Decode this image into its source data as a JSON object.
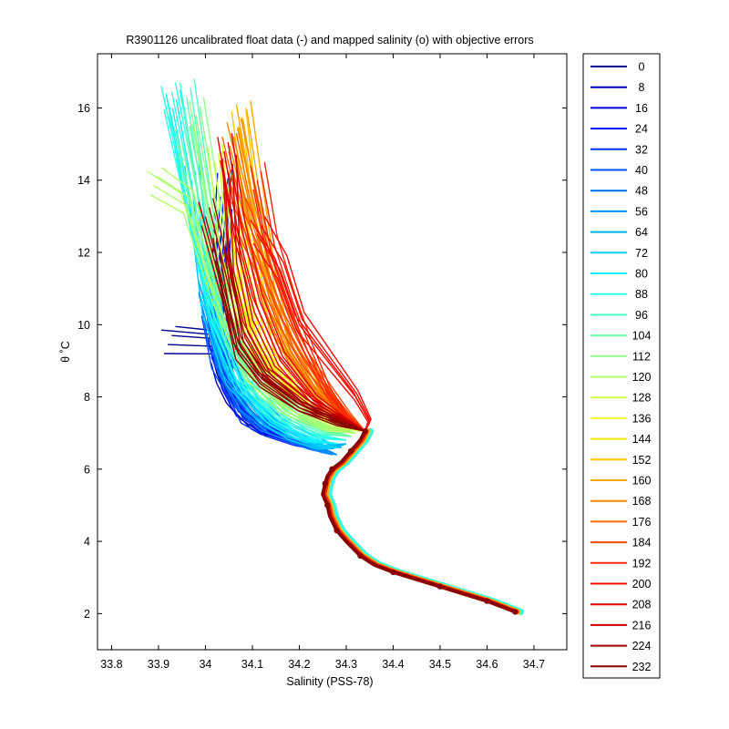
{
  "chart_data": {
    "type": "line",
    "title": "R3901126 uncalibrated float data (-) and mapped salinity (o) with objective errors",
    "xlabel": "Salinity (PSS-78)",
    "ylabel": "θ ˚C",
    "xlim": [
      33.77,
      34.77
    ],
    "ylim": [
      1,
      17.5
    ],
    "xticks": [
      "33.8",
      "33.9",
      "34",
      "34.1",
      "34.2",
      "34.3",
      "34.4",
      "34.5",
      "34.6",
      "34.7"
    ],
    "yticks": [
      "2",
      "4",
      "6",
      "8",
      "10",
      "12",
      "14",
      "16"
    ],
    "grid": false,
    "legend_position": "outside-right",
    "legend": [
      "0",
      "8",
      "16",
      "24",
      "32",
      "40",
      "48",
      "56",
      "64",
      "72",
      "80",
      "88",
      "96",
      "104",
      "112",
      "120",
      "128",
      "136",
      "144",
      "152",
      "160",
      "168",
      "176",
      "184",
      "192",
      "200",
      "208",
      "216",
      "224",
      "232"
    ],
    "series_colors": [
      "#00008f",
      "#0000b0",
      "#0000d8",
      "#0010ff",
      "#0030ff",
      "#0050ff",
      "#0070ff",
      "#0090ff",
      "#00b0ff",
      "#00d0ff",
      "#10f0ff",
      "#30ffe8",
      "#50ffc8",
      "#70ffa8",
      "#90ff88",
      "#b0ff68",
      "#d0ff48",
      "#f0ff28",
      "#ffe800",
      "#ffc800",
      "#ffa800",
      "#ff8800",
      "#ff6800",
      "#ff4800",
      "#ff2800",
      "#ff0800",
      "#e80000",
      "#c80000",
      "#a80000",
      "#880000"
    ],
    "series": [
      {
        "name": "0",
        "x": [
          33.92,
          34.02,
          34.03,
          34.06,
          34.1,
          34.12,
          34.15
        ],
        "y": [
          9.45,
          9.4,
          8.8,
          7.8,
          7.2,
          7.0,
          6.9
        ]
      },
      {
        "name": "8",
        "x": [
          34.02,
          34.03,
          34.05,
          34.08,
          34.12,
          34.16,
          34.22
        ],
        "y": [
          9.2,
          8.6,
          8.0,
          7.5,
          7.1,
          6.9,
          6.7
        ]
      },
      {
        "name": "16",
        "x": [
          34.04,
          34.03,
          34.05,
          34.09,
          34.14,
          34.2,
          34.25
        ],
        "y": [
          12.7,
          9.5,
          8.2,
          7.5,
          7.0,
          6.7,
          6.5
        ]
      },
      {
        "name": "24",
        "x": [
          34.04,
          34.02,
          34.04,
          34.07,
          34.12,
          34.18,
          34.24
        ],
        "y": [
          13.8,
          10.0,
          8.4,
          7.6,
          7.1,
          6.8,
          6.6
        ]
      },
      {
        "name": "32",
        "x": [
          34.03,
          34.02,
          34.05,
          34.08,
          34.13,
          34.19,
          34.25
        ],
        "y": [
          11.5,
          9.3,
          8.3,
          7.4,
          7.0,
          6.7,
          6.5
        ]
      },
      {
        "name": "40",
        "x": [
          34.0,
          34.02,
          34.06,
          34.1,
          34.15,
          34.21,
          34.26
        ],
        "y": [
          10.5,
          9.0,
          8.0,
          7.4,
          7.0,
          6.7,
          6.5
        ]
      },
      {
        "name": "48",
        "x": [
          34.01,
          34.03,
          34.07,
          34.12,
          34.17,
          34.22,
          34.27
        ],
        "y": [
          11.0,
          9.0,
          7.9,
          7.2,
          6.9,
          6.6,
          6.4
        ]
      },
      {
        "name": "56",
        "x": [
          34.0,
          34.04,
          34.08,
          34.14,
          34.2,
          34.25,
          34.28
        ],
        "y": [
          10.8,
          8.8,
          7.8,
          7.1,
          6.8,
          6.5,
          6.4
        ]
      },
      {
        "name": "64",
        "x": [
          34.0,
          34.04,
          34.1,
          34.16,
          34.22,
          34.27,
          34.3
        ],
        "y": [
          11.2,
          8.9,
          7.7,
          7.1,
          6.8,
          6.6,
          6.7
        ]
      },
      {
        "name": "72",
        "x": [
          33.97,
          34.0,
          34.05,
          34.12,
          34.18,
          34.24,
          34.29
        ],
        "y": [
          14.0,
          10.5,
          8.5,
          7.4,
          6.9,
          6.6,
          6.6
        ]
      },
      {
        "name": "80",
        "x": [
          33.93,
          33.98,
          34.02,
          34.07,
          34.14,
          34.21,
          34.28
        ],
        "y": [
          16.0,
          12.5,
          10.0,
          8.3,
          7.3,
          6.8,
          6.7
        ]
      },
      {
        "name": "88",
        "x": [
          33.92,
          33.97,
          34.02,
          34.08,
          34.15,
          34.23,
          34.3
        ],
        "y": [
          16.2,
          13.2,
          10.2,
          8.3,
          7.4,
          6.9,
          6.8
        ]
      },
      {
        "name": "96",
        "x": [
          33.96,
          34.0,
          34.04,
          34.1,
          34.17,
          34.25,
          34.31
        ],
        "y": [
          16.3,
          13.0,
          10.0,
          8.2,
          7.4,
          7.0,
          6.9
        ]
      },
      {
        "name": "104",
        "x": [
          33.95,
          34.0,
          34.05,
          34.12,
          34.2,
          34.27,
          34.31
        ],
        "y": [
          15.0,
          12.0,
          9.6,
          8.1,
          7.4,
          7.0,
          6.9
        ]
      },
      {
        "name": "112",
        "x": [
          33.98,
          34.02,
          34.06,
          34.13,
          34.21,
          34.28,
          34.32
        ],
        "y": [
          15.8,
          12.8,
          10.0,
          8.3,
          7.5,
          7.1,
          7.0
        ]
      },
      {
        "name": "120",
        "x": [
          33.89,
          33.96,
          34.02,
          34.09,
          34.17,
          34.26,
          34.32
        ],
        "y": [
          13.85,
          13.3,
          10.8,
          8.6,
          7.6,
          7.1,
          7.0
        ]
      },
      {
        "name": "128",
        "x": [
          34.02,
          34.04,
          34.08,
          34.14,
          34.22,
          34.28,
          34.33
        ],
        "y": [
          14.5,
          12.0,
          9.8,
          8.4,
          7.6,
          7.2,
          7.05
        ]
      },
      {
        "name": "136",
        "x": [
          34.05,
          34.06,
          34.1,
          34.16,
          34.24,
          34.3,
          34.33
        ],
        "y": [
          14.0,
          11.5,
          9.5,
          8.3,
          7.6,
          7.2,
          7.05
        ]
      },
      {
        "name": "144",
        "x": [
          34.06,
          34.08,
          34.12,
          34.18,
          34.26,
          34.31,
          34.34
        ],
        "y": [
          13.5,
          11.0,
          9.2,
          8.2,
          7.6,
          7.2,
          7.05
        ]
      },
      {
        "name": "152",
        "x": [
          34.07,
          34.1,
          34.15,
          34.22,
          34.28,
          34.32,
          34.34
        ],
        "y": [
          15.5,
          12.5,
          9.5,
          8.3,
          7.6,
          7.2,
          7.05
        ]
      },
      {
        "name": "160",
        "x": [
          34.08,
          34.11,
          34.14,
          34.17,
          34.23,
          34.29,
          34.34
        ],
        "y": [
          15.7,
          13.3,
          11.0,
          9.5,
          8.2,
          7.4,
          7.05
        ]
      },
      {
        "name": "168",
        "x": [
          34.06,
          34.1,
          34.14,
          34.19,
          34.25,
          34.3,
          34.34
        ],
        "y": [
          15.2,
          13.0,
          11.2,
          9.5,
          8.2,
          7.4,
          7.05
        ]
      },
      {
        "name": "176",
        "x": [
          34.05,
          34.09,
          34.13,
          34.18,
          34.24,
          34.3,
          34.34
        ],
        "y": [
          14.8,
          12.5,
          10.6,
          9.1,
          8.0,
          7.4,
          7.05
        ]
      },
      {
        "name": "184",
        "x": [
          34.07,
          34.12,
          34.16,
          34.21,
          34.27,
          34.31,
          34.34
        ],
        "y": [
          13.0,
          11.5,
          10.2,
          9.0,
          8.0,
          7.4,
          7.05
        ]
      },
      {
        "name": "192",
        "x": [
          34.11,
          34.14,
          34.18,
          34.22,
          34.26,
          34.3,
          34.34
        ],
        "y": [
          14.0,
          12.0,
          10.5,
          9.2,
          8.1,
          7.4,
          7.05
        ]
      },
      {
        "name": "200",
        "x": [
          34.11,
          34.16,
          34.2,
          34.26,
          34.32,
          34.35,
          34.34
        ],
        "y": [
          12.5,
          11.5,
          10.0,
          9.0,
          8.0,
          7.3,
          7.05
        ]
      },
      {
        "name": "208",
        "x": [
          34.04,
          34.07,
          34.11,
          34.16,
          34.23,
          34.3,
          34.34
        ],
        "y": [
          14.8,
          12.5,
          10.5,
          9.0,
          7.9,
          7.3,
          7.05
        ]
      },
      {
        "name": "216",
        "x": [
          34.05,
          34.06,
          34.09,
          34.14,
          34.22,
          34.3,
          34.34
        ],
        "y": [
          14.2,
          11.5,
          9.8,
          8.6,
          7.8,
          7.3,
          7.05
        ]
      },
      {
        "name": "224",
        "x": [
          34.0,
          34.04,
          34.07,
          34.12,
          34.2,
          34.29,
          34.34
        ],
        "y": [
          13.0,
          11.0,
          9.5,
          8.5,
          7.7,
          7.3,
          7.05
        ]
      },
      {
        "name": "232",
        "x": [
          34.03,
          34.05,
          34.07,
          34.12,
          34.2,
          34.28,
          34.34
        ],
        "y": [
          12.0,
          10.5,
          9.2,
          8.4,
          7.7,
          7.25,
          7.05
        ]
      }
    ],
    "deep_profile": {
      "x": [
        34.34,
        34.33,
        34.31,
        34.29,
        34.27,
        34.26,
        34.255,
        34.25,
        34.26,
        34.265,
        34.28,
        34.3,
        34.33,
        34.36,
        34.4,
        34.45,
        34.5,
        34.55,
        34.6,
        34.63,
        34.66
      ],
      "y": [
        7.05,
        6.8,
        6.5,
        6.2,
        6.0,
        5.8,
        5.6,
        5.3,
        5.0,
        4.7,
        4.3,
        4.0,
        3.6,
        3.35,
        3.15,
        2.95,
        2.75,
        2.55,
        2.35,
        2.2,
        2.05
      ]
    }
  }
}
